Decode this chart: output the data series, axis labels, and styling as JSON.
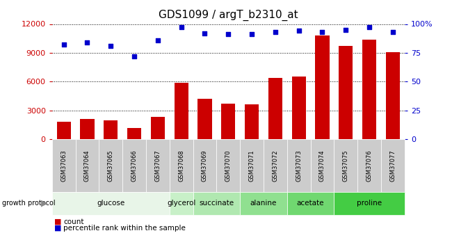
{
  "title": "GDS1099 / argT_b2310_at",
  "samples": [
    "GSM37063",
    "GSM37064",
    "GSM37065",
    "GSM37066",
    "GSM37067",
    "GSM37068",
    "GSM37069",
    "GSM37070",
    "GSM37071",
    "GSM37072",
    "GSM37073",
    "GSM37074",
    "GSM37075",
    "GSM37076",
    "GSM37077"
  ],
  "counts": [
    1800,
    2100,
    1950,
    1200,
    2300,
    5900,
    4200,
    3700,
    3650,
    6400,
    6500,
    10800,
    9700,
    10400,
    9100
  ],
  "percentiles": [
    82,
    84,
    81,
    72,
    86,
    97,
    92,
    91,
    91,
    93,
    94,
    93,
    95,
    97,
    93
  ],
  "bar_color": "#cc0000",
  "dot_color": "#0000cc",
  "groups": [
    {
      "label": "glucose",
      "start": 0,
      "end": 5,
      "color": "#e8f5e8"
    },
    {
      "label": "glycerol",
      "start": 5,
      "end": 6,
      "color": "#c8f0c8"
    },
    {
      "label": "succinate",
      "start": 6,
      "end": 8,
      "color": "#b0e8b0"
    },
    {
      "label": "alanine",
      "start": 8,
      "end": 10,
      "color": "#90e090"
    },
    {
      "label": "acetate",
      "start": 10,
      "end": 12,
      "color": "#70d870"
    },
    {
      "label": "proline",
      "start": 12,
      "end": 15,
      "color": "#44cc44"
    }
  ],
  "ylim_left": [
    0,
    12000
  ],
  "ylim_right": [
    0,
    100
  ],
  "yticks_left": [
    0,
    3000,
    6000,
    9000,
    12000
  ],
  "yticks_right": [
    0,
    25,
    50,
    75,
    100
  ],
  "left_tick_color": "#cc0000",
  "right_tick_color": "#0000cc",
  "grid_color": "#000000",
  "background_color": "#ffffff",
  "sample_label_bg": "#cccccc",
  "title_fontsize": 11,
  "tick_fontsize": 8,
  "sample_fontsize": 6,
  "group_fontsize": 7.5
}
